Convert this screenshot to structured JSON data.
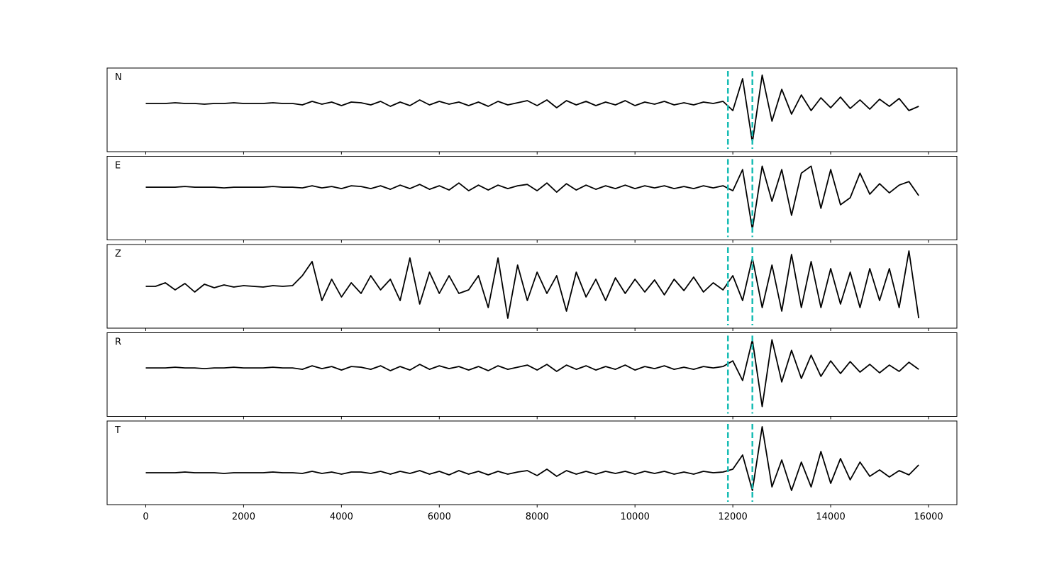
{
  "chart_data": {
    "type": "line",
    "x": [
      0,
      200,
      400,
      600,
      800,
      1000,
      1200,
      1400,
      1600,
      1800,
      2000,
      2200,
      2400,
      2600,
      2800,
      3000,
      3200,
      3400,
      3600,
      3800,
      4000,
      4200,
      4400,
      4600,
      4800,
      5000,
      5200,
      5400,
      5600,
      5800,
      6000,
      6200,
      6400,
      6600,
      6800,
      7000,
      7200,
      7400,
      7600,
      7800,
      8000,
      8200,
      8400,
      8600,
      8800,
      9000,
      9200,
      9400,
      9600,
      9800,
      10000,
      10200,
      10400,
      10600,
      10800,
      11000,
      11200,
      11400,
      11600,
      11800,
      12000,
      12200,
      12400,
      12600,
      12800,
      13000,
      13200,
      13400,
      13600,
      13800,
      14000,
      14200,
      14400,
      14600,
      14800,
      15000,
      15200,
      15400,
      15600,
      15800
    ],
    "series": [
      {
        "name": "N",
        "color": "#000000",
        "ylim": [
          -6.8,
          5.0
        ],
        "values": [
          0,
          0,
          0,
          0.1,
          0,
          0,
          -0.1,
          0,
          0,
          0.1,
          0,
          0,
          0,
          0.1,
          0,
          0,
          -0.2,
          0.3,
          -0.1,
          0.2,
          -0.3,
          0.2,
          0.1,
          -0.2,
          0.3,
          -0.4,
          0.2,
          -0.3,
          0.5,
          -0.2,
          0.3,
          -0.1,
          0.2,
          -0.3,
          0.2,
          -0.4,
          0.3,
          -0.2,
          0.1,
          0.4,
          -0.3,
          0.5,
          -0.6,
          0.4,
          -0.2,
          0.3,
          -0.3,
          0.2,
          -0.2,
          0.4,
          -0.3,
          0.2,
          -0.1,
          0.3,
          -0.2,
          0.1,
          -0.2,
          0.2,
          0,
          0.3,
          -1.0,
          3.5,
          -5.5,
          4,
          -2.5,
          2,
          -1.5,
          1.2,
          -1.0,
          0.8,
          -0.6,
          0.9,
          -0.7,
          0.5,
          -0.8,
          0.6,
          -0.4,
          0.7,
          -1.0,
          -0.4
        ]
      },
      {
        "name": "E",
        "color": "#000000",
        "ylim": [
          -7.5,
          4.4
        ],
        "values": [
          0,
          0,
          0,
          0,
          0.1,
          0,
          0,
          0,
          -0.1,
          0,
          0,
          0,
          0,
          0.1,
          0,
          0,
          -0.1,
          0.2,
          -0.1,
          0.1,
          -0.2,
          0.2,
          0.1,
          -0.2,
          0.2,
          -0.3,
          0.3,
          -0.2,
          0.4,
          -0.3,
          0.2,
          -0.4,
          0.6,
          -0.5,
          0.3,
          -0.4,
          0.3,
          -0.2,
          0.2,
          0.4,
          -0.5,
          0.6,
          -0.7,
          0.5,
          -0.4,
          0.3,
          -0.3,
          0.2,
          -0.2,
          0.3,
          -0.2,
          0.2,
          -0.1,
          0.2,
          -0.2,
          0.1,
          -0.2,
          0.2,
          -0.1,
          0.2,
          -0.5,
          2.5,
          -6.0,
          3,
          -2,
          2.5,
          -4,
          2,
          3,
          -3,
          2.5,
          -2.5,
          -1.5,
          2,
          -1,
          0.5,
          -0.8,
          0.3,
          0.8,
          -1.2
        ]
      },
      {
        "name": "Z",
        "color": "#000000",
        "ylim": [
          -5.9,
          5.9
        ],
        "values": [
          0,
          0,
          0.5,
          -0.5,
          0.4,
          -0.8,
          0.3,
          -0.2,
          0.2,
          -0.1,
          0.1,
          0,
          -0.1,
          0.1,
          0,
          0.1,
          1.5,
          3.5,
          -2,
          1,
          -1.5,
          0.5,
          -1,
          1.5,
          -0.5,
          1,
          -2,
          4,
          -2.5,
          2,
          -1,
          1.5,
          -1,
          -0.5,
          1.5,
          -3,
          4,
          -4.5,
          3,
          -2,
          2,
          -1,
          1.5,
          -3.5,
          2,
          -1.5,
          1,
          -2,
          1.2,
          -1,
          1,
          -0.8,
          0.9,
          -1.2,
          1,
          -0.6,
          1.3,
          -0.8,
          0.5,
          -0.5,
          1.5,
          -2,
          4,
          -3,
          3,
          -3.5,
          4.5,
          -3,
          3.5,
          -3,
          2.5,
          -2.5,
          2,
          -3,
          2.5,
          -2,
          2.5,
          -3,
          5,
          -4.5
        ]
      },
      {
        "name": "R",
        "color": "#000000",
        "ylim": [
          -6.9,
          5.0
        ],
        "values": [
          0,
          0,
          0,
          0.1,
          0,
          0,
          -0.1,
          0,
          0,
          0.1,
          0,
          0,
          0,
          0.1,
          0,
          0,
          -0.2,
          0.3,
          -0.1,
          0.2,
          -0.3,
          0.2,
          0.1,
          -0.2,
          0.3,
          -0.4,
          0.2,
          -0.3,
          0.5,
          -0.2,
          0.3,
          -0.1,
          0.2,
          -0.3,
          0.2,
          -0.4,
          0.3,
          -0.2,
          0.1,
          0.4,
          -0.3,
          0.5,
          -0.5,
          0.4,
          -0.2,
          0.3,
          -0.3,
          0.2,
          -0.2,
          0.4,
          -0.3,
          0.2,
          -0.1,
          0.3,
          -0.2,
          0.1,
          -0.2,
          0.2,
          0,
          0.2,
          1,
          -1.8,
          4,
          -5.5,
          4,
          -2,
          2.5,
          -1.5,
          1.8,
          -1.2,
          1,
          -0.8,
          0.9,
          -0.6,
          0.5,
          -0.7,
          0.4,
          -0.5,
          0.8,
          -0.2
        ]
      },
      {
        "name": "T",
        "color": "#000000",
        "ylim": [
          -4.5,
          7.3
        ],
        "values": [
          0,
          0,
          0,
          0,
          0.1,
          0,
          0,
          0,
          -0.1,
          0,
          0,
          0,
          0,
          0.1,
          0,
          0,
          -0.1,
          0.2,
          -0.1,
          0.1,
          -0.2,
          0.1,
          0.1,
          -0.1,
          0.2,
          -0.2,
          0.2,
          -0.1,
          0.3,
          -0.2,
          0.2,
          -0.3,
          0.3,
          -0.2,
          0.2,
          -0.3,
          0.2,
          -0.2,
          0.1,
          0.3,
          -0.4,
          0.5,
          -0.5,
          0.3,
          -0.2,
          0.2,
          -0.2,
          0.2,
          -0.1,
          0.2,
          -0.2,
          0.2,
          -0.1,
          0.2,
          -0.2,
          0.1,
          -0.2,
          0.2,
          0,
          0.1,
          0.5,
          2.5,
          -2.5,
          6.5,
          -2,
          1.8,
          -2.5,
          1.5,
          -2,
          3,
          -1.5,
          2,
          -1,
          1.5,
          -0.5,
          0.4,
          -0.6,
          0.3,
          -0.3,
          1.1
        ]
      }
    ],
    "xlim": [
      -790,
      16580
    ],
    "xticks": [
      0,
      2000,
      4000,
      6000,
      8000,
      10000,
      12000,
      14000,
      16000
    ],
    "vlines": [
      11900,
      12400
    ],
    "vline_color": "#17bcb4"
  }
}
